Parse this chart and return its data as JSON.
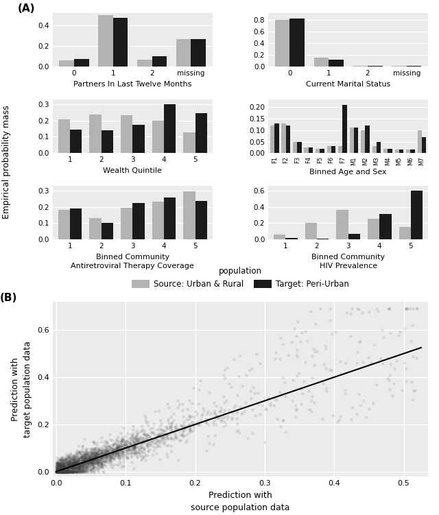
{
  "panel_A_label": "(A)",
  "panel_B_label": "(B)",
  "color_source": "#b3b3b3",
  "color_target": "#1a1a1a",
  "bar_width": 0.38,
  "partners": {
    "title": "Partners In Last Twelve Months",
    "categories": [
      "0",
      "1",
      "2",
      "missing"
    ],
    "source": [
      0.06,
      0.5,
      0.07,
      0.265
    ],
    "target": [
      0.075,
      0.47,
      0.1,
      0.265
    ],
    "ylim": [
      0,
      0.52
    ],
    "yticks": [
      0.0,
      0.2,
      0.4
    ]
  },
  "marital": {
    "title": "Current Marital Status",
    "categories": [
      "0",
      "1",
      "2",
      "missing"
    ],
    "source": [
      0.8,
      0.155,
      0.02,
      0.012
    ],
    "target": [
      0.825,
      0.12,
      0.012,
      0.01
    ],
    "ylim": [
      0,
      0.92
    ],
    "yticks": [
      0.0,
      0.2,
      0.4,
      0.6,
      0.8
    ]
  },
  "wealth": {
    "title": "Wealth Quintile",
    "categories": [
      "1",
      "2",
      "3",
      "4",
      "5"
    ],
    "source": [
      0.205,
      0.235,
      0.23,
      0.2,
      0.125
    ],
    "target": [
      0.145,
      0.14,
      0.175,
      0.3,
      0.245
    ],
    "ylim": [
      0,
      0.33
    ],
    "yticks": [
      0.0,
      0.1,
      0.2,
      0.3
    ]
  },
  "age_sex": {
    "title": "Binned Age and Sex",
    "categories": [
      "F1",
      "F2",
      "F3",
      "F4",
      "F5",
      "F6",
      "F7",
      "M1",
      "M2",
      "M3",
      "M4",
      "M5",
      "M6",
      "M7"
    ],
    "source": [
      0.12,
      0.13,
      0.05,
      0.025,
      0.02,
      0.03,
      0.03,
      0.11,
      0.1,
      0.03,
      0.02,
      0.015,
      0.015,
      0.1
    ],
    "target": [
      0.13,
      0.12,
      0.05,
      0.025,
      0.02,
      0.03,
      0.21,
      0.11,
      0.12,
      0.05,
      0.02,
      0.015,
      0.015,
      0.07
    ],
    "ylim": [
      0,
      0.235
    ],
    "yticks": [
      0.0,
      0.05,
      0.1,
      0.15,
      0.2
    ]
  },
  "art": {
    "title": "Binned Community\nAntiretroviral Therapy Coverage",
    "categories": [
      "1",
      "2",
      "3",
      "4",
      "5"
    ],
    "source": [
      0.18,
      0.13,
      0.195,
      0.23,
      0.295
    ],
    "target": [
      0.19,
      0.1,
      0.225,
      0.255,
      0.235
    ],
    "ylim": [
      0,
      0.33
    ],
    "yticks": [
      0.0,
      0.1,
      0.2,
      0.3
    ]
  },
  "hiv": {
    "title": "Binned Community\nHIV Prevalence",
    "categories": [
      "1",
      "2",
      "3",
      "4",
      "5"
    ],
    "source": [
      0.06,
      0.2,
      0.365,
      0.25,
      0.15
    ],
    "target": [
      0.02,
      0.01,
      0.07,
      0.31,
      0.6
    ],
    "ylim": [
      0,
      0.66
    ],
    "yticks": [
      0.0,
      0.2,
      0.4,
      0.6
    ]
  },
  "scatter": {
    "xlabel": "Prediction with\nsource population data",
    "ylabel": "Prediction with\ntarget population data",
    "xlim": [
      -0.005,
      0.535
    ],
    "ylim": [
      -0.02,
      0.72
    ],
    "xticks": [
      0.0,
      0.1,
      0.2,
      0.3,
      0.4,
      0.5
    ],
    "yticks": [
      0.0,
      0.2,
      0.4,
      0.6
    ]
  },
  "legend_source_label": "Source: Urban & Rural",
  "legend_target_label": "Target: Peri-Urban",
  "legend_title": "population",
  "ylabel_shared": "Empirical probability mass"
}
